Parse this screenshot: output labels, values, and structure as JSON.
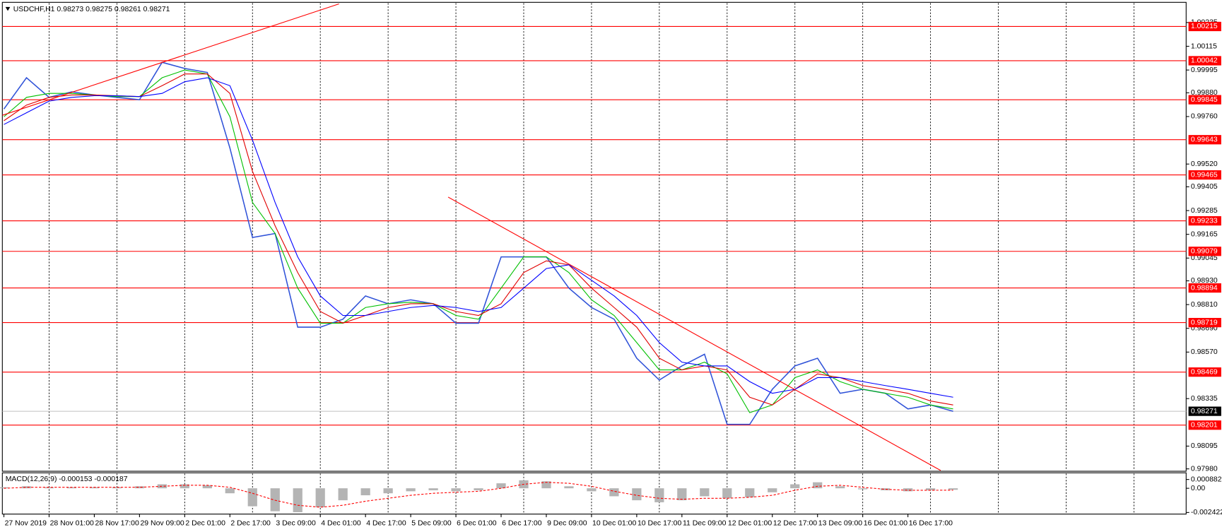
{
  "chart_data": [
    {
      "type": "line",
      "title": "USDCHF,H1  0.98273 0.98275 0.98261 0.98271",
      "categories": [
        "27 Nov 2019",
        null,
        "28 Nov 01:00",
        null,
        "28 Nov 17:00",
        null,
        "29 Nov 09:00",
        null,
        "2 Dec 01:00",
        null,
        "2 Dec 17:00",
        null,
        "3 Dec 09:00",
        null,
        "4 Dec 01:00",
        null,
        "4 Dec 17:00",
        null,
        "5 Dec 09:00",
        null,
        "6 Dec 01:00",
        null,
        "6 Dec 17:00",
        null,
        "9 Dec 09:00",
        null,
        "10 Dec 01:00",
        null,
        "10 Dec 17:00",
        null,
        "11 Dec 09:00",
        null,
        "12 Dec 01:00",
        null,
        "12 Dec 17:00",
        null,
        "13 Dec 09:00",
        null,
        "16 Dec 01:00",
        null,
        "16 Dec 17:00",
        null,
        null
      ],
      "ylim": [
        0.97968,
        1.00337
      ],
      "yticks": [
        1.00235,
        1.00115,
        0.99995,
        {
          "value": 0.9988,
          "label": "0.99880"
        },
        {
          "value": 0.9976,
          "label": "0.99760"
        },
        {
          "value": 0.9952,
          "label": "0.99520"
        },
        0.99405,
        0.99285,
        0.99165,
        0.99045,
        {
          "value": 0.9893,
          "label": "0.98930"
        },
        {
          "value": 0.9881,
          "label": "0.98810"
        },
        {
          "value": 0.9869,
          "label": "0.98690"
        },
        {
          "value": 0.9857,
          "label": "0.98570"
        },
        0.98335,
        0.98095,
        {
          "value": 0.9798,
          "label": "0.97980"
        }
      ],
      "grid": true,
      "levels": [
        1.00215,
        1.00042,
        0.99845,
        0.99643,
        0.99465,
        0.99233,
        0.99079,
        0.98894,
        0.98719,
        0.98469,
        0.98201
      ],
      "level_color": "#ff0000",
      "current_price": 0.98271,
      "series": [
        {
          "color": "#2f52d8",
          "values": [
            0.99798,
            0.99956,
            0.99857,
            0.99885,
            0.99869,
            0.99857,
            0.99845,
            1.00034,
            1.00003,
            0.99983,
            0.99601,
            0.99149,
            0.99169,
            0.98696,
            0.98696,
            0.98736,
            0.98854,
            0.98814,
            0.98834,
            0.98814,
            0.98716,
            0.98716,
            0.99051,
            0.99051,
            0.99051,
            0.98893,
            0.98795,
            0.98736,
            0.98539,
            0.98429,
            0.985,
            0.98559,
            0.98205,
            0.98205,
            0.98382,
            0.985,
            0.98539,
            0.98362,
            0.98382,
            0.98362,
            0.98283,
            0.98303,
            0.98271
          ]
        },
        {
          "color": "#00c000",
          "values": [
            0.99759,
            0.99857,
            0.99877,
            0.99877,
            0.99869,
            0.99861,
            0.99861,
            0.99956,
            0.99995,
            0.99975,
            0.99759,
            0.99326,
            0.99169,
            0.98893,
            0.98716,
            0.98716,
            0.98795,
            0.98814,
            0.98822,
            0.98814,
            0.98755,
            0.98736,
            0.98893,
            0.99051,
            0.99051,
            0.98972,
            0.98834,
            0.98755,
            0.98618,
            0.9848,
            0.9848,
            0.98519,
            0.9846,
            0.98264,
            0.98303,
            0.98441,
            0.9848,
            0.98421,
            0.98382,
            0.98362,
            0.98342,
            0.98303,
            0.98283
          ]
        },
        {
          "color": "#e00000",
          "values": [
            0.99739,
            0.99818,
            0.99857,
            0.99869,
            0.99869,
            0.99865,
            0.99861,
            0.99916,
            0.99975,
            0.99975,
            0.99877,
            0.99483,
            0.99208,
            0.98972,
            0.98775,
            0.98716,
            0.98755,
            0.98795,
            0.98814,
            0.98814,
            0.98775,
            0.98755,
            0.98814,
            0.98972,
            0.99031,
            0.99011,
            0.98893,
            0.98795,
            0.98696,
            0.98539,
            0.9848,
            0.985,
            0.9848,
            0.98342,
            0.98303,
            0.98382,
            0.9846,
            0.98441,
            0.98401,
            0.98382,
            0.98362,
            0.98323,
            0.98303
          ]
        },
        {
          "color": "#0000ff",
          "values": [
            0.9972,
            0.99779,
            0.99838,
            0.99857,
            0.99865,
            0.99865,
            0.99861,
            0.99877,
            0.99936,
            0.99956,
            0.99916,
            0.99641,
            0.99326,
            0.99051,
            0.98854,
            0.98755,
            0.98755,
            0.98775,
            0.98795,
            0.98806,
            0.98795,
            0.98775,
            0.98795,
            0.98893,
            0.98992,
            0.99011,
            0.98933,
            0.98854,
            0.98755,
            0.98618,
            0.98519,
            0.985,
            0.985,
            0.98421,
            0.98362,
            0.98382,
            0.98441,
            0.98441,
            0.98421,
            0.98401,
            0.98382,
            0.98362,
            0.98342
          ]
        }
      ]
    },
    {
      "type": "bar",
      "title": "MACD(12,26,9) -0.000153 -0.000187",
      "ylim": [
        -0.002583,
        0.00155
      ],
      "yticks": [
        0.000882,
        {
          "value": 0,
          "label": "0.00"
        },
        -0.002422
      ],
      "series": [
        {
          "type": "bar",
          "color": "#b4b4b4",
          "values": [
            0.0001,
            0.0002,
            0.0001,
            0.0001,
            0.0001,
            0.0001,
            0.0002,
            0.0004,
            0.0004,
            0.0003,
            -0.0005,
            -0.0018,
            -0.0023,
            -0.0024,
            -0.0019,
            -0.0012,
            -0.0007,
            -0.0005,
            -0.0003,
            -0.0002,
            -0.0003,
            -0.0002,
            0.0005,
            0.0008,
            0.0007,
            0.0002,
            -0.0003,
            -0.0008,
            -0.0012,
            -0.0014,
            -0.0012,
            -0.0008,
            -0.001,
            -0.0009,
            -0.0004,
            0.0004,
            0.0006,
            0.0002,
            -0.0001,
            -0.0002,
            -0.0003,
            -0.0002,
            -0.000153
          ]
        },
        {
          "type": "line",
          "color": "#ff0000",
          "dash": true,
          "values": [
            0,
            0.0001,
            0.0001,
            0.0001,
            0.0001,
            0.0001,
            0.0001,
            0.0002,
            0.0003,
            0.0003,
            0.0001,
            -0.0005,
            -0.0012,
            -0.0017,
            -0.0019,
            -0.0017,
            -0.0013,
            -0.001,
            -0.0007,
            -0.0005,
            -0.0004,
            -0.0003,
            0,
            0.0004,
            0.0006,
            0.0005,
            0.0002,
            -0.0003,
            -0.0007,
            -0.001,
            -0.0011,
            -0.001,
            -0.001,
            -0.0009,
            -0.0007,
            -0.0002,
            0.0002,
            0.0003,
            0.0001,
            -0.0001,
            -0.0002,
            -0.0002,
            -0.000187
          ]
        }
      ]
    }
  ]
}
